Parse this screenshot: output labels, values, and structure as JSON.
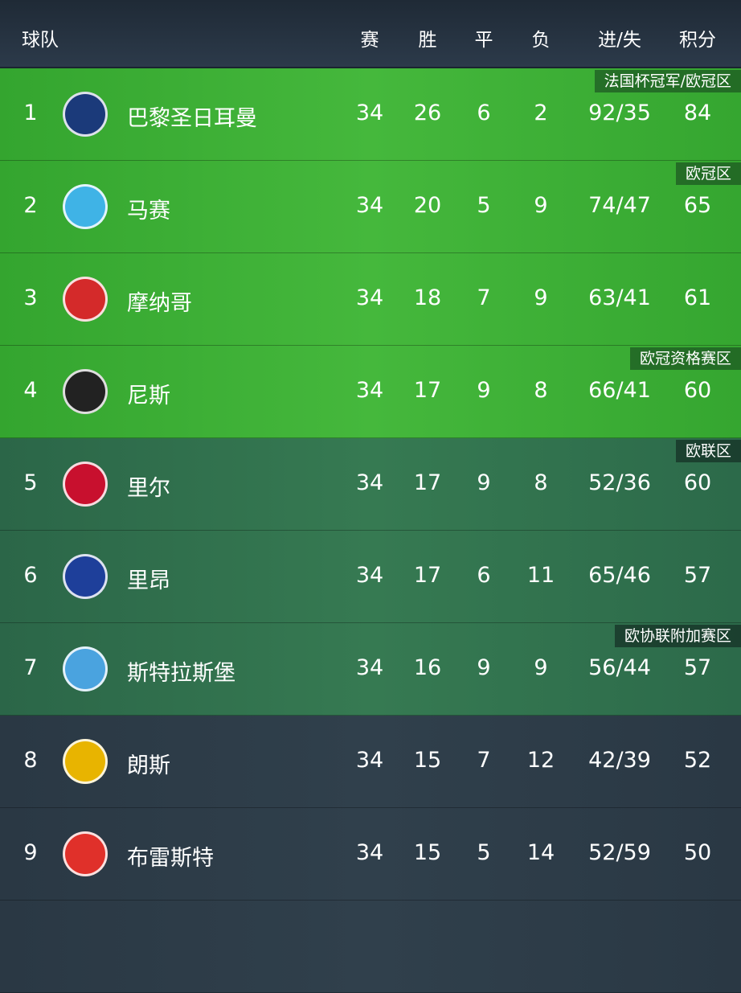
{
  "header": {
    "team": "球队",
    "played": "赛",
    "won": "胜",
    "drawn": "平",
    "lost": "负",
    "goals": "进/失",
    "points": "积分"
  },
  "colors": {
    "champions_zone": "#3aae34",
    "europa_zone": "#2f6e4c",
    "normal": "#2c3a46",
    "header": "#263342"
  },
  "rows": [
    {
      "rank": "1",
      "team": "巴黎圣日耳曼",
      "logo": "psg-crest",
      "p": "34",
      "w": "26",
      "d": "6",
      "l": "2",
      "g": "92/35",
      "pts": "84",
      "zone": "法国杯冠军/欧冠区",
      "tier": "g1",
      "lc": "#1b3a7a"
    },
    {
      "rank": "2",
      "team": "马赛",
      "logo": "marseille-crest",
      "p": "34",
      "w": "20",
      "d": "5",
      "l": "9",
      "g": "74/47",
      "pts": "65",
      "zone": "欧冠区",
      "tier": "g1",
      "lc": "#3fb3e6"
    },
    {
      "rank": "3",
      "team": "摩纳哥",
      "logo": "monaco-crest",
      "p": "34",
      "w": "18",
      "d": "7",
      "l": "9",
      "g": "63/41",
      "pts": "61",
      "zone": "",
      "tier": "g1",
      "lc": "#d42a2a"
    },
    {
      "rank": "4",
      "team": "尼斯",
      "logo": "nice-crest",
      "p": "34",
      "w": "17",
      "d": "9",
      "l": "8",
      "g": "66/41",
      "pts": "60",
      "zone": "欧冠资格赛区",
      "tier": "g1",
      "lc": "#222"
    },
    {
      "rank": "5",
      "team": "里尔",
      "logo": "lille-crest",
      "p": "34",
      "w": "17",
      "d": "9",
      "l": "8",
      "g": "52/36",
      "pts": "60",
      "zone": "欧联区",
      "tier": "g2",
      "lc": "#c8102e"
    },
    {
      "rank": "6",
      "team": "里昂",
      "logo": "lyon-crest",
      "p": "34",
      "w": "17",
      "d": "6",
      "l": "11",
      "g": "65/46",
      "pts": "57",
      "zone": "",
      "tier": "g2",
      "lc": "#1e3f9a"
    },
    {
      "rank": "7",
      "team": "斯特拉斯堡",
      "logo": "strasbourg-crest",
      "p": "34",
      "w": "16",
      "d": "9",
      "l": "9",
      "g": "56/44",
      "pts": "57",
      "zone": "欧协联附加赛区",
      "tier": "g2",
      "lc": "#4aa3df"
    },
    {
      "rank": "8",
      "team": "朗斯",
      "logo": "lens-crest",
      "p": "34",
      "w": "15",
      "d": "7",
      "l": "12",
      "g": "42/39",
      "pts": "52",
      "zone": "",
      "tier": "g3",
      "lc": "#e8b400"
    },
    {
      "rank": "9",
      "team": "布雷斯特",
      "logo": "brest-crest",
      "p": "34",
      "w": "15",
      "d": "5",
      "l": "14",
      "g": "52/59",
      "pts": "50",
      "zone": "",
      "tier": "g3",
      "lc": "#e0302a"
    }
  ]
}
